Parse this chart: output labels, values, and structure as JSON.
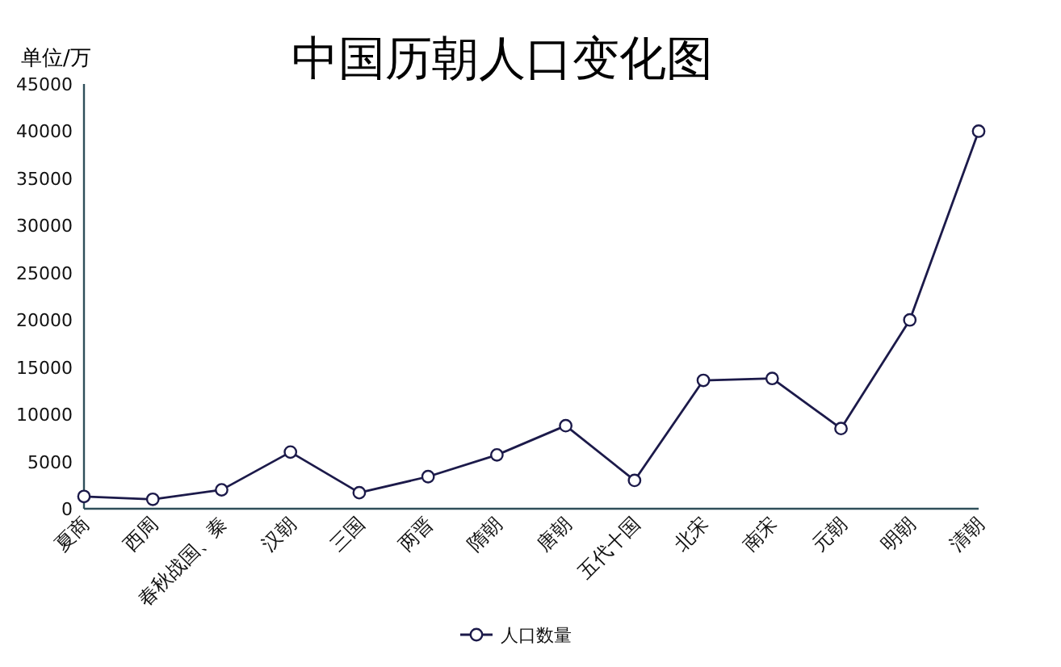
{
  "chart_data": {
    "type": "line",
    "title": "中国历朝人口变化图",
    "ylabel": "单位/万",
    "categories": [
      "夏商",
      "西周",
      "春秋战国、秦",
      "汉朝",
      "三国",
      "两晋",
      "隋朝",
      "唐朝",
      "五代十国",
      "北宋",
      "南宋",
      "元朝",
      "明朝",
      "清朝"
    ],
    "series": [
      {
        "name": "人口数量",
        "color": "#1c1a4a",
        "values": [
          1300,
          1000,
          2000,
          6000,
          1700,
          3400,
          5700,
          8800,
          3000,
          13600,
          13800,
          8500,
          20000,
          40000
        ]
      }
    ],
    "ylim": [
      0,
      45000
    ],
    "yticks": [
      0,
      5000,
      10000,
      15000,
      20000,
      25000,
      30000,
      35000,
      40000,
      45000
    ],
    "legend": "bottom",
    "marker": "circle",
    "line_style": "solid"
  }
}
